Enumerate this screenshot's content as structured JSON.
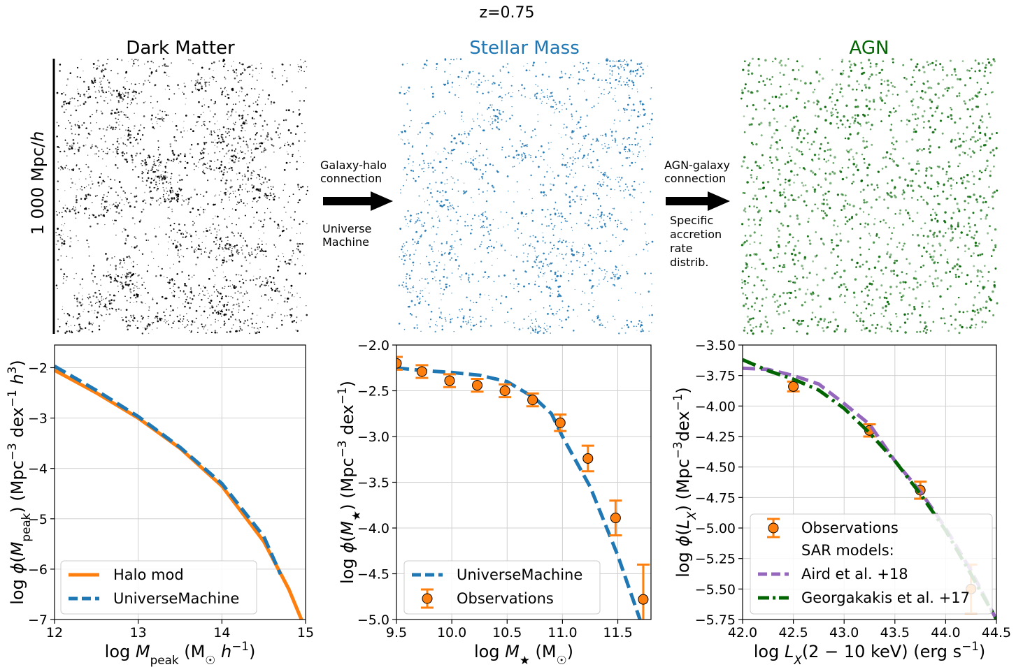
{
  "figure_title": "z=0.75",
  "panels": {
    "dm": {
      "title": "Dark Matter",
      "color": "#000000",
      "scale_bar": "1 000 Mpc/h"
    },
    "sm": {
      "title": "Stellar Mass",
      "color": "#1f77b4"
    },
    "agn": {
      "title": "AGN",
      "color": "#006400"
    }
  },
  "arrow1": {
    "top": [
      "Galaxy-halo",
      "connection"
    ],
    "bottom": [
      "Universe",
      "Machine"
    ]
  },
  "arrow2": {
    "top": [
      "AGN-galaxy",
      "connection"
    ],
    "bottom": [
      "Specific",
      "accretion",
      "rate",
      "distrib."
    ]
  },
  "colors": {
    "orange": "#ff7f0e",
    "blue": "#1f77b4",
    "purple": "#9467bd",
    "green": "#006400"
  },
  "chart_data": [
    {
      "type": "line",
      "xlabel": "log M_peak (M☉ h^-1)",
      "ylabel": "log φ(M_peak) (Mpc^-3 dex^-1 h^3)",
      "xlim": [
        12,
        15
      ],
      "ylim": [
        -7,
        -1.55
      ],
      "xticks": [
        12,
        13,
        14,
        15
      ],
      "yticks": [
        -7,
        -6,
        -5,
        -4,
        -3,
        -2
      ],
      "grid": true,
      "legend": "lower-left",
      "series": [
        {
          "name": "Halo mod",
          "style": "solid",
          "color": "#ff7f0e",
          "x": [
            12.0,
            12.5,
            13.0,
            13.5,
            14.0,
            14.5,
            14.8,
            15.0
          ],
          "y": [
            -2.05,
            -2.5,
            -3.0,
            -3.6,
            -4.35,
            -5.45,
            -6.4,
            -7.2
          ]
        },
        {
          "name": "UniverseMachine",
          "style": "dashed",
          "color": "#1f77b4",
          "x": [
            12.0,
            12.5,
            13.0,
            13.5,
            14.0,
            14.5,
            14.7
          ],
          "y": [
            -1.97,
            -2.45,
            -2.97,
            -3.58,
            -4.3,
            -5.35,
            -6.1
          ]
        }
      ]
    },
    {
      "type": "line",
      "xlabel": "log M★ (M☉)",
      "ylabel": "log φ(M★) (Mpc^-3 dex^-1)",
      "xlim": [
        9.5,
        11.8
      ],
      "ylim": [
        -5.0,
        -2.0
      ],
      "xticks": [
        9.5,
        10.0,
        10.5,
        11.0,
        11.5
      ],
      "yticks": [
        -5.0,
        -4.5,
        -4.0,
        -3.5,
        -3.0,
        -2.5,
        -2.0
      ],
      "grid": true,
      "legend": "lower-left",
      "series": [
        {
          "name": "UniverseMachine",
          "style": "dashed",
          "color": "#1f77b4",
          "x": [
            9.5,
            9.75,
            10.0,
            10.25,
            10.5,
            10.75,
            10.9,
            11.0,
            11.25,
            11.5,
            11.7
          ],
          "y": [
            -2.25,
            -2.28,
            -2.3,
            -2.33,
            -2.4,
            -2.58,
            -2.75,
            -3.0,
            -3.55,
            -4.3,
            -5.0
          ]
        },
        {
          "name": "Observations",
          "style": "errorbar",
          "color": "#ff7f0e",
          "x": [
            9.5,
            9.73,
            9.98,
            10.23,
            10.48,
            10.73,
            10.98,
            11.23,
            11.48,
            11.73
          ],
          "y": [
            -2.2,
            -2.29,
            -2.39,
            -2.44,
            -2.5,
            -2.6,
            -2.85,
            -3.24,
            -3.89,
            -4.78
          ],
          "yerr": [
            0.07,
            0.07,
            0.07,
            0.07,
            0.07,
            0.07,
            0.09,
            0.14,
            0.19,
            0.38
          ]
        }
      ]
    },
    {
      "type": "line",
      "xlabel": "log L_X(2 − 10 keV) (erg s^-1)",
      "ylabel": "log φ(L_X) (Mpc^-3dex^-1)",
      "xlim": [
        42.0,
        44.5
      ],
      "ylim": [
        -5.75,
        -3.5
      ],
      "xticks": [
        42.0,
        42.5,
        43.0,
        43.5,
        44.0,
        44.5
      ],
      "yticks": [
        -5.75,
        -5.5,
        -5.25,
        -5.0,
        -4.75,
        -4.5,
        -4.25,
        -4.0,
        -3.75,
        -3.5
      ],
      "grid": true,
      "legend": "lower-left",
      "series": [
        {
          "name": "Observations",
          "style": "errorbar",
          "color": "#ff7f0e",
          "x": [
            42.5,
            43.25,
            43.75,
            44.25
          ],
          "y": [
            -3.84,
            -4.2,
            -4.69,
            -5.5
          ],
          "yerr": [
            0.04,
            0.05,
            0.07,
            0.2
          ]
        },
        {
          "name": "Aird et al. +18",
          "style": "dashed",
          "color": "#9467bd",
          "x": [
            42.0,
            42.25,
            42.5,
            42.75,
            43.0,
            43.25,
            43.5,
            43.75,
            44.0,
            44.25,
            44.5
          ],
          "y": [
            -3.69,
            -3.7,
            -3.75,
            -3.82,
            -3.98,
            -4.15,
            -4.45,
            -4.7,
            -5.0,
            -5.35,
            -5.75
          ]
        },
        {
          "name": "Georgakakis et al. +17",
          "style": "dashdot",
          "color": "#006400",
          "x": [
            42.0,
            42.25,
            42.5,
            42.75,
            43.0,
            43.25,
            43.5,
            43.75,
            44.0,
            44.25,
            44.5
          ],
          "y": [
            -3.62,
            -3.71,
            -3.78,
            -3.87,
            -4.02,
            -4.22,
            -4.45,
            -4.72,
            -5.02,
            -5.38,
            -5.75
          ]
        }
      ],
      "legend_subtitle": "SAR models:"
    }
  ]
}
